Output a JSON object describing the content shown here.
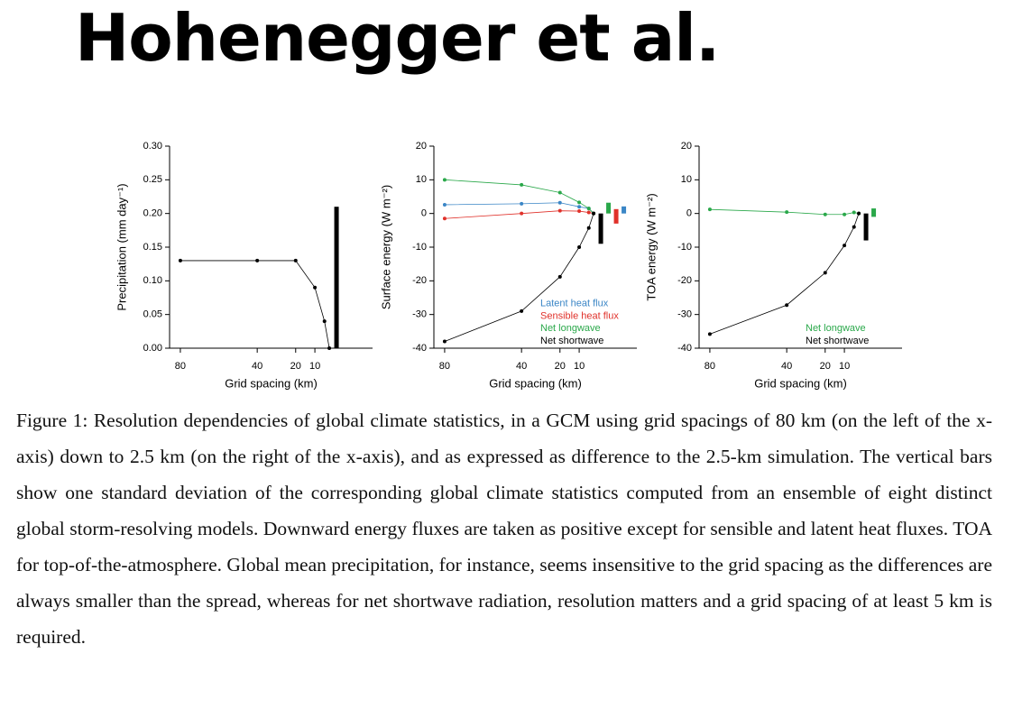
{
  "title": "Hohenegger et al.",
  "chart_data": [
    {
      "type": "line",
      "xlabel": "Grid spacing (km)",
      "ylabel": "Precipitation (mm day⁻¹)",
      "x": [
        80,
        40,
        20,
        10,
        5,
        2.5
      ],
      "xlim": [
        85.6,
        -20
      ],
      "xticks": [
        80,
        40,
        20,
        10
      ],
      "ylim": [
        0,
        0.3
      ],
      "yticks": [
        {
          "value": 0,
          "label": "0.00"
        },
        {
          "value": 0.05,
          "label": "0.05"
        },
        {
          "value": 0.1,
          "label": "0.10"
        },
        {
          "value": 0.15,
          "label": "0.15"
        },
        {
          "value": 0.2,
          "label": "0.20"
        },
        {
          "value": 0.25,
          "label": "0.25"
        },
        {
          "value": 0.3,
          "label": "0.30"
        }
      ],
      "series": [
        {
          "color": "#000000",
          "values": [
            0.13,
            0.13,
            0.13,
            0.09,
            0.04,
            0
          ],
          "spread": [
            0,
            0.21
          ]
        }
      ]
    },
    {
      "type": "line",
      "xlabel": "Grid spacing (km)",
      "ylabel": "Surface energy (W m⁻²)",
      "x": [
        80,
        40,
        20,
        10,
        5,
        2.5
      ],
      "xlim": [
        85.6,
        -20
      ],
      "xticks": [
        80,
        40,
        20,
        10
      ],
      "ylim": [
        -40,
        20
      ],
      "yticks": [
        -40,
        -30,
        -20,
        -10,
        0,
        10,
        20
      ],
      "legend": "lower right",
      "series": [
        {
          "name": "Latent heat flux",
          "color": "#3b86c6",
          "values": [
            2.6,
            2.9,
            3.2,
            2,
            1.5,
            0
          ],
          "spread": [
            0,
            2.1
          ]
        },
        {
          "name": "Sensible heat flux",
          "color": "#e0312a",
          "values": [
            -1.5,
            0,
            0.8,
            0.7,
            0.3,
            0
          ],
          "spread": [
            -3,
            1.3
          ]
        },
        {
          "name": "Net longwave",
          "color": "#2aa84a",
          "values": [
            10,
            8.5,
            6.2,
            3.3,
            1.5,
            0
          ],
          "spread": [
            0,
            3.2
          ]
        },
        {
          "name": "Net shortwave",
          "color": "#000000",
          "values": [
            -38,
            -29,
            -18.8,
            -10,
            -4.3,
            0
          ],
          "spread": [
            -9,
            0
          ]
        }
      ]
    },
    {
      "type": "line",
      "xlabel": "Grid spacing (km)",
      "ylabel": "TOA energy (W m⁻²)",
      "x": [
        80,
        40,
        20,
        10,
        5,
        2.5
      ],
      "xlim": [
        85.6,
        -20
      ],
      "xticks": [
        80,
        40,
        20,
        10
      ],
      "ylim": [
        -40,
        20
      ],
      "yticks": [
        -40,
        -30,
        -20,
        -10,
        0,
        10,
        20
      ],
      "legend": "lower right",
      "series": [
        {
          "name": "Net longwave",
          "color": "#2aa84a",
          "values": [
            1.2,
            0.4,
            -0.3,
            -0.3,
            0.3,
            0
          ],
          "spread": [
            -1,
            1.5
          ]
        },
        {
          "name": "Net shortwave",
          "color": "#000000",
          "values": [
            -35.8,
            -27.2,
            -17.6,
            -9.5,
            -4,
            0
          ],
          "spread": [
            -8,
            0
          ]
        }
      ]
    }
  ],
  "caption": "Figure 1: Resolution dependencies of global climate statistics, in a GCM using grid spacings of 80 km (on the left of the x-axis) down to 2.5 km (on the right of the x-axis), and as expressed as difference to the 2.5-km simulation. The vertical bars show one standard deviation of the corresponding global climate statistics computed from an ensemble of eight distinct global storm-resolving models. Downward energy fluxes are taken as positive except for sensible and latent heat fluxes. TOA for top-of-the-atmosphere. Global mean precipitation, for instance, seems insensitive to the grid spacing as the differences are always smaller than the spread, whereas for net shortwave radiation, resolution matters and a grid spacing of at least 5 km is required."
}
